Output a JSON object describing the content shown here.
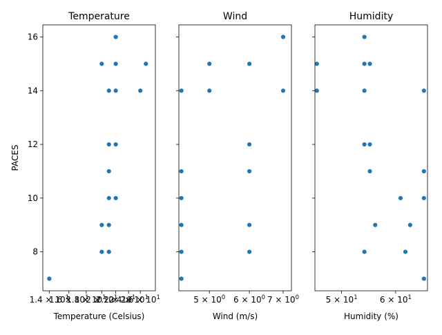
{
  "chart_data": [
    {
      "type": "scatter",
      "title": "Temperature",
      "xlabel": "Temperature (Celsius)",
      "ylabel": "PACES",
      "xscale": "log",
      "xticks": [
        {
          "label": "1.4 × 10^1",
          "value": 14
        },
        {
          "label": "1.6 × 10^1",
          "value": 16
        },
        {
          "label": "1.8 × 10^1",
          "value": 18
        },
        {
          "label": "2 × 10^1",
          "value": 20
        },
        {
          "label": "2.2 × 10^1",
          "value": 22
        },
        {
          "label": "2.4 × 10^1",
          "value": 24
        },
        {
          "label": "2.6 × 10^1",
          "value": 26
        }
      ],
      "xlim": [
        13.4,
        28.8
      ],
      "yticks": [
        8,
        10,
        12,
        14,
        16
      ],
      "ylim": [
        6.55,
        16.45
      ],
      "color": "#1f77b4",
      "points": [
        {
          "x": 14,
          "y": 7
        },
        {
          "x": 20,
          "y": 8
        },
        {
          "x": 21,
          "y": 8
        },
        {
          "x": 20,
          "y": 9
        },
        {
          "x": 21,
          "y": 9
        },
        {
          "x": 21,
          "y": 10
        },
        {
          "x": 22,
          "y": 10
        },
        {
          "x": 21,
          "y": 11
        },
        {
          "x": 21,
          "y": 12
        },
        {
          "x": 22,
          "y": 12
        },
        {
          "x": 21,
          "y": 14
        },
        {
          "x": 22,
          "y": 14
        },
        {
          "x": 26,
          "y": 14
        },
        {
          "x": 20,
          "y": 15
        },
        {
          "x": 22,
          "y": 15
        },
        {
          "x": 27,
          "y": 15
        },
        {
          "x": 22,
          "y": 16
        }
      ]
    },
    {
      "type": "scatter",
      "title": "Wind",
      "xlabel": "Wind (m/s)",
      "ylabel": "",
      "xscale": "log",
      "xticks": [
        {
          "label": "5 × 10^0",
          "value": 5
        },
        {
          "label": "6 × 10^0",
          "value": 6
        },
        {
          "label": "7 × 10^0",
          "value": 7
        }
      ],
      "xlim": [
        4.35,
        7.27
      ],
      "yticks": [
        8,
        10,
        12,
        14,
        16
      ],
      "ylim": [
        6.55,
        16.45
      ],
      "color": "#1f77b4",
      "points": [
        {
          "x": 4.4,
          "y": 7
        },
        {
          "x": 4.4,
          "y": 8
        },
        {
          "x": 6,
          "y": 8
        },
        {
          "x": 4.4,
          "y": 9
        },
        {
          "x": 6,
          "y": 9
        },
        {
          "x": 4.4,
          "y": 10
        },
        {
          "x": 4.4,
          "y": 11
        },
        {
          "x": 6,
          "y": 11
        },
        {
          "x": 6,
          "y": 12
        },
        {
          "x": 4.4,
          "y": 14
        },
        {
          "x": 5,
          "y": 14
        },
        {
          "x": 7,
          "y": 14
        },
        {
          "x": 5,
          "y": 15
        },
        {
          "x": 6,
          "y": 15
        },
        {
          "x": 7,
          "y": 16
        }
      ]
    },
    {
      "type": "scatter",
      "title": "Humidity",
      "xlabel": "Humidity (%)",
      "ylabel": "",
      "xscale": "log",
      "xticks": [
        {
          "label": "5 × 10^1",
          "value": 50
        },
        {
          "label": "6 × 10^1",
          "value": 60
        }
      ],
      "xlim": [
        45.7,
        66.8
      ],
      "yticks": [
        8,
        10,
        12,
        14,
        16
      ],
      "ylim": [
        6.55,
        16.45
      ],
      "color": "#1f77b4",
      "points": [
        {
          "x": 66,
          "y": 7
        },
        {
          "x": 54,
          "y": 8
        },
        {
          "x": 62,
          "y": 8
        },
        {
          "x": 56,
          "y": 9
        },
        {
          "x": 63,
          "y": 9
        },
        {
          "x": 61,
          "y": 10
        },
        {
          "x": 66,
          "y": 10
        },
        {
          "x": 55,
          "y": 11
        },
        {
          "x": 66,
          "y": 11
        },
        {
          "x": 54,
          "y": 12
        },
        {
          "x": 55,
          "y": 12
        },
        {
          "x": 46,
          "y": 14
        },
        {
          "x": 54,
          "y": 14
        },
        {
          "x": 66,
          "y": 14
        },
        {
          "x": 46,
          "y": 15
        },
        {
          "x": 54,
          "y": 15
        },
        {
          "x": 55,
          "y": 15
        },
        {
          "x": 54,
          "y": 16
        }
      ]
    }
  ]
}
